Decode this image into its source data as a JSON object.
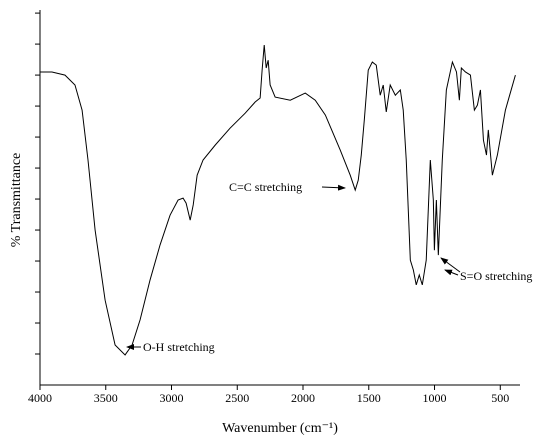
{
  "chart_data": {
    "type": "line",
    "x_label": "Wavenumber (cm⁻¹)",
    "y_label": "% Transmittance",
    "x": [
      4000,
      3909,
      3810,
      3734,
      3680,
      3635,
      3581,
      3505,
      3429,
      3353,
      3300,
      3239,
      3163,
      3087,
      3011,
      2950,
      2912,
      2889,
      2858,
      2835,
      2805,
      2760,
      2668,
      2554,
      2440,
      2364,
      2326,
      2311,
      2295,
      2280,
      2265,
      2250,
      2212,
      2097,
      1983,
      1907,
      1830,
      1717,
      1641,
      1603,
      1580,
      1557,
      1534,
      1504,
      1473,
      1443,
      1413,
      1390,
      1367,
      1337,
      1298,
      1260,
      1238,
      1215,
      1184,
      1161,
      1139,
      1116,
      1093,
      1063,
      1032,
      1009,
      1001,
      986,
      971,
      941,
      910,
      864,
      833,
      811,
      796,
      765,
      727,
      697,
      674,
      651,
      628,
      605,
      591,
      560,
      522,
      461,
      385
    ],
    "series": [
      {
        "color": "#000000",
        "values": [
          10.1,
          10.1,
          10.0,
          9.68,
          8.87,
          7.26,
          5.0,
          2.74,
          1.29,
          0.97,
          1.29,
          2.1,
          3.39,
          4.52,
          5.48,
          5.97,
          6.03,
          5.87,
          5.32,
          5.81,
          6.77,
          7.26,
          7.74,
          8.29,
          8.77,
          9.13,
          9.26,
          10.16,
          10.97,
          10.23,
          10.48,
          9.68,
          9.29,
          9.19,
          9.42,
          9.19,
          8.71,
          7.58,
          6.77,
          6.29,
          6.61,
          7.42,
          8.55,
          10.16,
          10.42,
          10.32,
          9.35,
          9.68,
          8.81,
          9.68,
          9.35,
          9.52,
          8.87,
          7.26,
          4.03,
          3.71,
          3.23,
          3.55,
          3.23,
          4.03,
          7.26,
          5.97,
          4.35,
          5.97,
          4.19,
          7.26,
          9.52,
          10.42,
          10.1,
          9.19,
          10.23,
          10.1,
          10.0,
          8.87,
          9.03,
          9.52,
          7.9,
          7.42,
          8.23,
          6.77,
          7.42,
          8.87,
          10.0
        ]
      }
    ],
    "xlim": [
      4000,
      350
    ],
    "xticks": [
      4000,
      3500,
      3000,
      2500,
      2000,
      1500,
      1000,
      500
    ],
    "ylim": [
      0,
      12.1
    ],
    "yticks": [
      1,
      2,
      3,
      4,
      5,
      6,
      7,
      8,
      9,
      10,
      11,
      12
    ],
    "annotations": [
      "O-H stretching",
      "C=C stretching",
      "S=O stretching"
    ]
  }
}
